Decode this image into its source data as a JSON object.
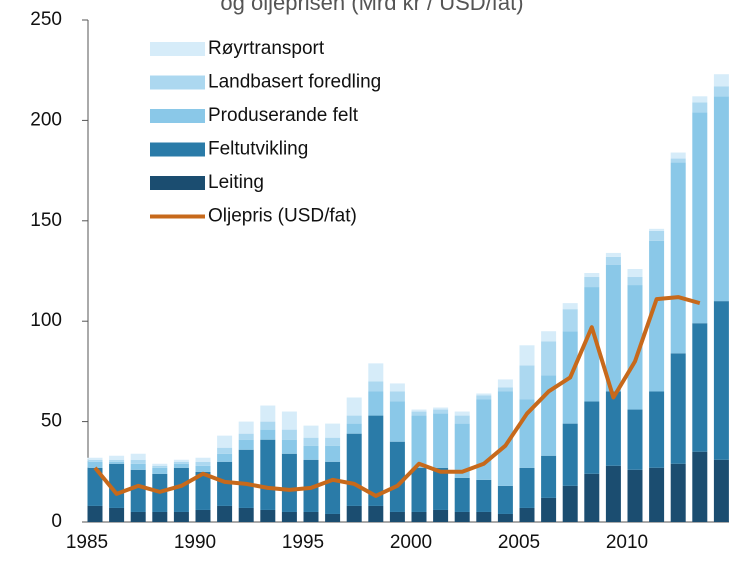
{
  "chart_data": {
    "type": "stacked-bar-line",
    "title": "og oljeprisen (Mrd kr / USD/fat)",
    "categories": [
      "1985",
      null,
      null,
      null,
      null,
      "1990",
      null,
      null,
      null,
      null,
      "1995",
      null,
      null,
      null,
      null,
      "2000",
      null,
      null,
      null,
      null,
      "2005",
      null,
      null,
      null,
      null,
      "2010",
      null,
      null,
      null,
      null
    ],
    "series": [
      {
        "name": "Leiting",
        "color": "#1b4d70",
        "values": [
          8,
          7,
          5,
          5,
          5,
          6,
          8,
          7,
          6,
          5,
          5,
          4,
          8,
          8,
          5,
          5,
          6,
          5,
          5,
          4,
          7,
          12,
          18,
          24,
          28,
          26,
          27,
          29,
          35,
          31
        ]
      },
      {
        "name": "Feltutvikling",
        "color": "#2a7ba8",
        "values": [
          19,
          22,
          21,
          19,
          22,
          19,
          22,
          29,
          35,
          29,
          26,
          26,
          36,
          45,
          35,
          22,
          21,
          17,
          16,
          14,
          20,
          21,
          31,
          36,
          37,
          30,
          38,
          55,
          64,
          79
        ]
      },
      {
        "name": "Produserande felt",
        "color": "#8ac8e8",
        "values": [
          3,
          1,
          3,
          3,
          2,
          3,
          4,
          5,
          5,
          7,
          7,
          8,
          5,
          12,
          20,
          26,
          27,
          27,
          40,
          47,
          34,
          40,
          46,
          57,
          63,
          62,
          75,
          95,
          105,
          102
        ]
      },
      {
        "name": "Landbasert foredling",
        "color": "#acd8f0",
        "values": [
          1,
          1,
          2,
          1,
          1,
          2,
          3,
          3,
          4,
          5,
          4,
          4,
          4,
          5,
          5,
          2,
          2,
          4,
          2,
          2,
          17,
          17,
          11,
          5,
          4,
          4,
          5,
          2,
          5,
          5
        ]
      },
      {
        "name": "Røyrtransport",
        "color": "#d6ecf9",
        "values": [
          1,
          2,
          3,
          1,
          1,
          2,
          6,
          6,
          8,
          9,
          6,
          7,
          9,
          9,
          4,
          1,
          1,
          2,
          1,
          4,
          10,
          5,
          3,
          2,
          2,
          4,
          1,
          3,
          3,
          6
        ]
      },
      {
        "name": "Oljepris (USD/fat)",
        "color": "#c7691b",
        "type": "line",
        "values": [
          27,
          14,
          18,
          15,
          18,
          24,
          20,
          19,
          17,
          16,
          17,
          21,
          19,
          13,
          18,
          29,
          25,
          25,
          29,
          38,
          54,
          65,
          72,
          97,
          62,
          80,
          111,
          112,
          109,
          null
        ]
      }
    ],
    "ylim": [
      0,
      250
    ],
    "yticks": [
      0,
      50,
      100,
      150,
      200,
      250
    ],
    "grid": false,
    "legend": "top-left"
  }
}
